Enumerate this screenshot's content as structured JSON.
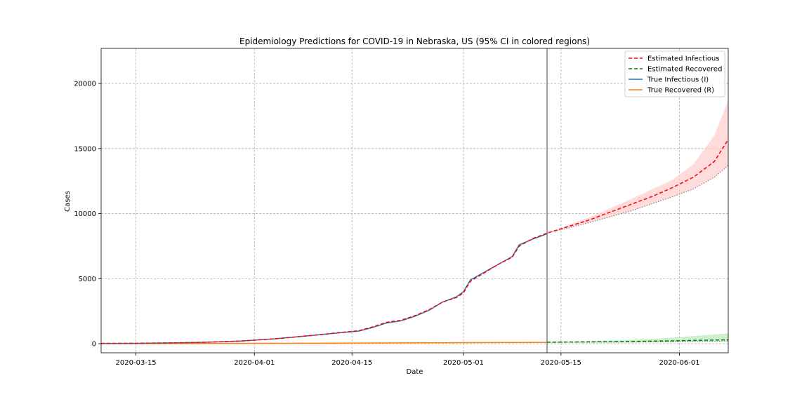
{
  "chart_data": {
    "type": "line",
    "title": "Epidemiology Predictions for COVID-19 in Nebraska, US (95% CI in colored regions)",
    "xlabel": "Date",
    "ylabel": "Cases",
    "xlim": [
      "2020-03-10",
      "2020-06-08"
    ],
    "ylim": [
      -700,
      22700
    ],
    "x_ticks": [
      "2020-03-15",
      "2020-04-01",
      "2020-04-15",
      "2020-05-01",
      "2020-05-15",
      "2020-06-01"
    ],
    "y_ticks": [
      0,
      5000,
      10000,
      15000,
      20000
    ],
    "grid": true,
    "legend_position": "top-right",
    "prediction_start": "2020-05-13",
    "colors": {
      "estimated_infectious": "#ff0000",
      "estimated_recovered": "#008000",
      "true_infectious": "#1f77b4",
      "true_recovered": "#ff7f0e",
      "infectious_ci": "#ffcccc",
      "recovered_ci": "#b9e8b9",
      "lower_bound": "#808080",
      "divider": "#808080"
    },
    "series": [
      {
        "name": "Estimated Infectious",
        "style": "dashed",
        "x": [
          "2020-03-10",
          "2020-03-15",
          "2020-03-20",
          "2020-03-25",
          "2020-03-30",
          "2020-04-04",
          "2020-04-09",
          "2020-04-14",
          "2020-04-16",
          "2020-04-18",
          "2020-04-20",
          "2020-04-22",
          "2020-04-24",
          "2020-04-26",
          "2020-04-28",
          "2020-04-30",
          "2020-05-01",
          "2020-05-02",
          "2020-05-04",
          "2020-05-06",
          "2020-05-08",
          "2020-05-09",
          "2020-05-11",
          "2020-05-13",
          "2020-05-16",
          "2020-05-19",
          "2020-05-22",
          "2020-05-25",
          "2020-05-28",
          "2020-05-31",
          "2020-06-03",
          "2020-06-06",
          "2020-06-08"
        ],
        "values": [
          20,
          30,
          60,
          110,
          200,
          380,
          620,
          900,
          1000,
          1300,
          1650,
          1800,
          2150,
          2600,
          3200,
          3550,
          3900,
          4800,
          5450,
          6100,
          6650,
          7500,
          8100,
          8500,
          9000,
          9500,
          10100,
          10700,
          11300,
          12000,
          12800,
          14000,
          15700
        ]
      },
      {
        "name": "Estimated Recovered",
        "style": "dashed",
        "x": [
          "2020-05-13",
          "2020-05-19",
          "2020-05-25",
          "2020-05-31",
          "2020-06-08"
        ],
        "values": [
          115,
          140,
          170,
          220,
          300
        ]
      },
      {
        "name": "True Infectious (I)",
        "style": "solid",
        "x": [
          "2020-03-10",
          "2020-03-15",
          "2020-03-20",
          "2020-03-25",
          "2020-03-30",
          "2020-04-04",
          "2020-04-09",
          "2020-04-14",
          "2020-04-16",
          "2020-04-18",
          "2020-04-20",
          "2020-04-22",
          "2020-04-24",
          "2020-04-26",
          "2020-04-28",
          "2020-04-30",
          "2020-05-01",
          "2020-05-02",
          "2020-05-04",
          "2020-05-06",
          "2020-05-08",
          "2020-05-09",
          "2020-05-11",
          "2020-05-13"
        ],
        "values": [
          20,
          30,
          60,
          110,
          200,
          380,
          620,
          880,
          970,
          1250,
          1600,
          1750,
          2100,
          2550,
          3200,
          3600,
          4000,
          4900,
          5500,
          6100,
          6700,
          7600,
          8050,
          8450
        ]
      },
      {
        "name": "True Recovered (R)",
        "style": "solid",
        "x": [
          "2020-03-10",
          "2020-03-25",
          "2020-04-10",
          "2020-04-25",
          "2020-05-01",
          "2020-05-13"
        ],
        "values": [
          5,
          15,
          35,
          65,
          80,
          100
        ]
      }
    ],
    "confidence_intervals": [
      {
        "series": "Estimated Infectious",
        "x": [
          "2020-05-13",
          "2020-05-19",
          "2020-05-25",
          "2020-05-31",
          "2020-06-03",
          "2020-06-06",
          "2020-06-08"
        ],
        "lower": [
          8500,
          9300,
          10200,
          11300,
          11900,
          12800,
          13700
        ],
        "upper": [
          8500,
          9700,
          11100,
          12600,
          13800,
          16000,
          18700
        ]
      },
      {
        "series": "Estimated Recovered",
        "x": [
          "2020-05-13",
          "2020-05-25",
          "2020-06-01",
          "2020-06-08"
        ],
        "lower": [
          100,
          120,
          150,
          200
        ],
        "upper": [
          120,
          280,
          500,
          800
        ]
      }
    ]
  }
}
